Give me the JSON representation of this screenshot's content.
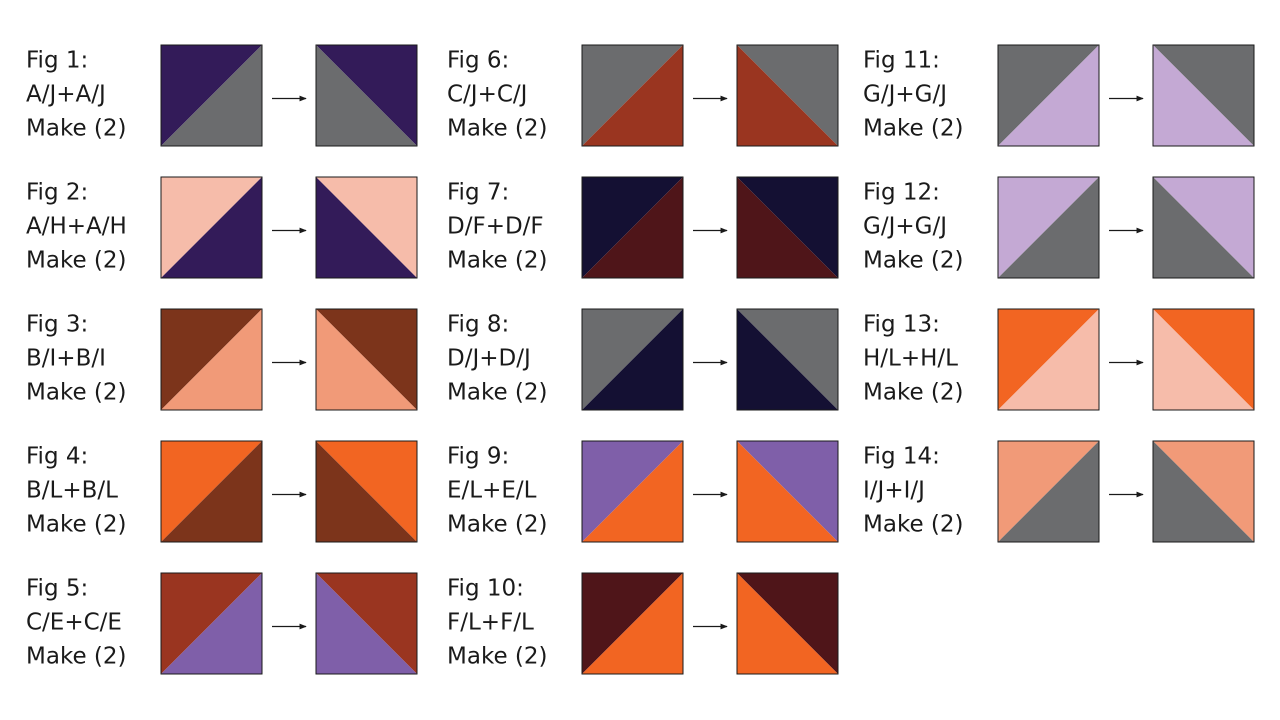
{
  "figures": [
    {
      "label": "Fig 1:",
      "formula": "A/J+A/J",
      "make": "Make (2)"
    },
    {
      "label": "Fig 2:",
      "formula": "A/H+A/H",
      "make": "Make (2)"
    },
    {
      "label": "Fig 3:",
      "formula": "B/I+B/I",
      "make": "Make (2)"
    },
    {
      "label": "Fig 4:",
      "formula": "B/L+B/L",
      "make": "Make (2)"
    },
    {
      "label": "Fig 5:",
      "formula": "C/E+C/E",
      "make": "Make (2)"
    },
    {
      "label": "Fig 6:",
      "formula": "C/J+C/J",
      "make": "Make (2)"
    },
    {
      "label": "Fig 7:",
      "formula": "D/F+D/F",
      "make": "Make (2)"
    },
    {
      "label": "Fig 8:",
      "formula": "D/J+D/J",
      "make": "Make (2)"
    },
    {
      "label": "Fig 9:",
      "formula": "E/L+E/L",
      "make": "Make (2)"
    },
    {
      "label": "Fig 10:",
      "formula": "F/L+F/L",
      "make": "Make (2)"
    },
    {
      "label": "Fig 11:",
      "formula": "G/J+G/J",
      "make": "Make (2)"
    },
    {
      "label": "Fig 12:",
      "formula": "G/J+G/J",
      "make": "Make (2)"
    },
    {
      "label": "Fig 13:",
      "formula": "H/L+H/L",
      "make": "Make (2)"
    },
    {
      "label": "Fig 14:",
      "formula": "I/J+I/J",
      "make": "Make (2)"
    }
  ]
}
